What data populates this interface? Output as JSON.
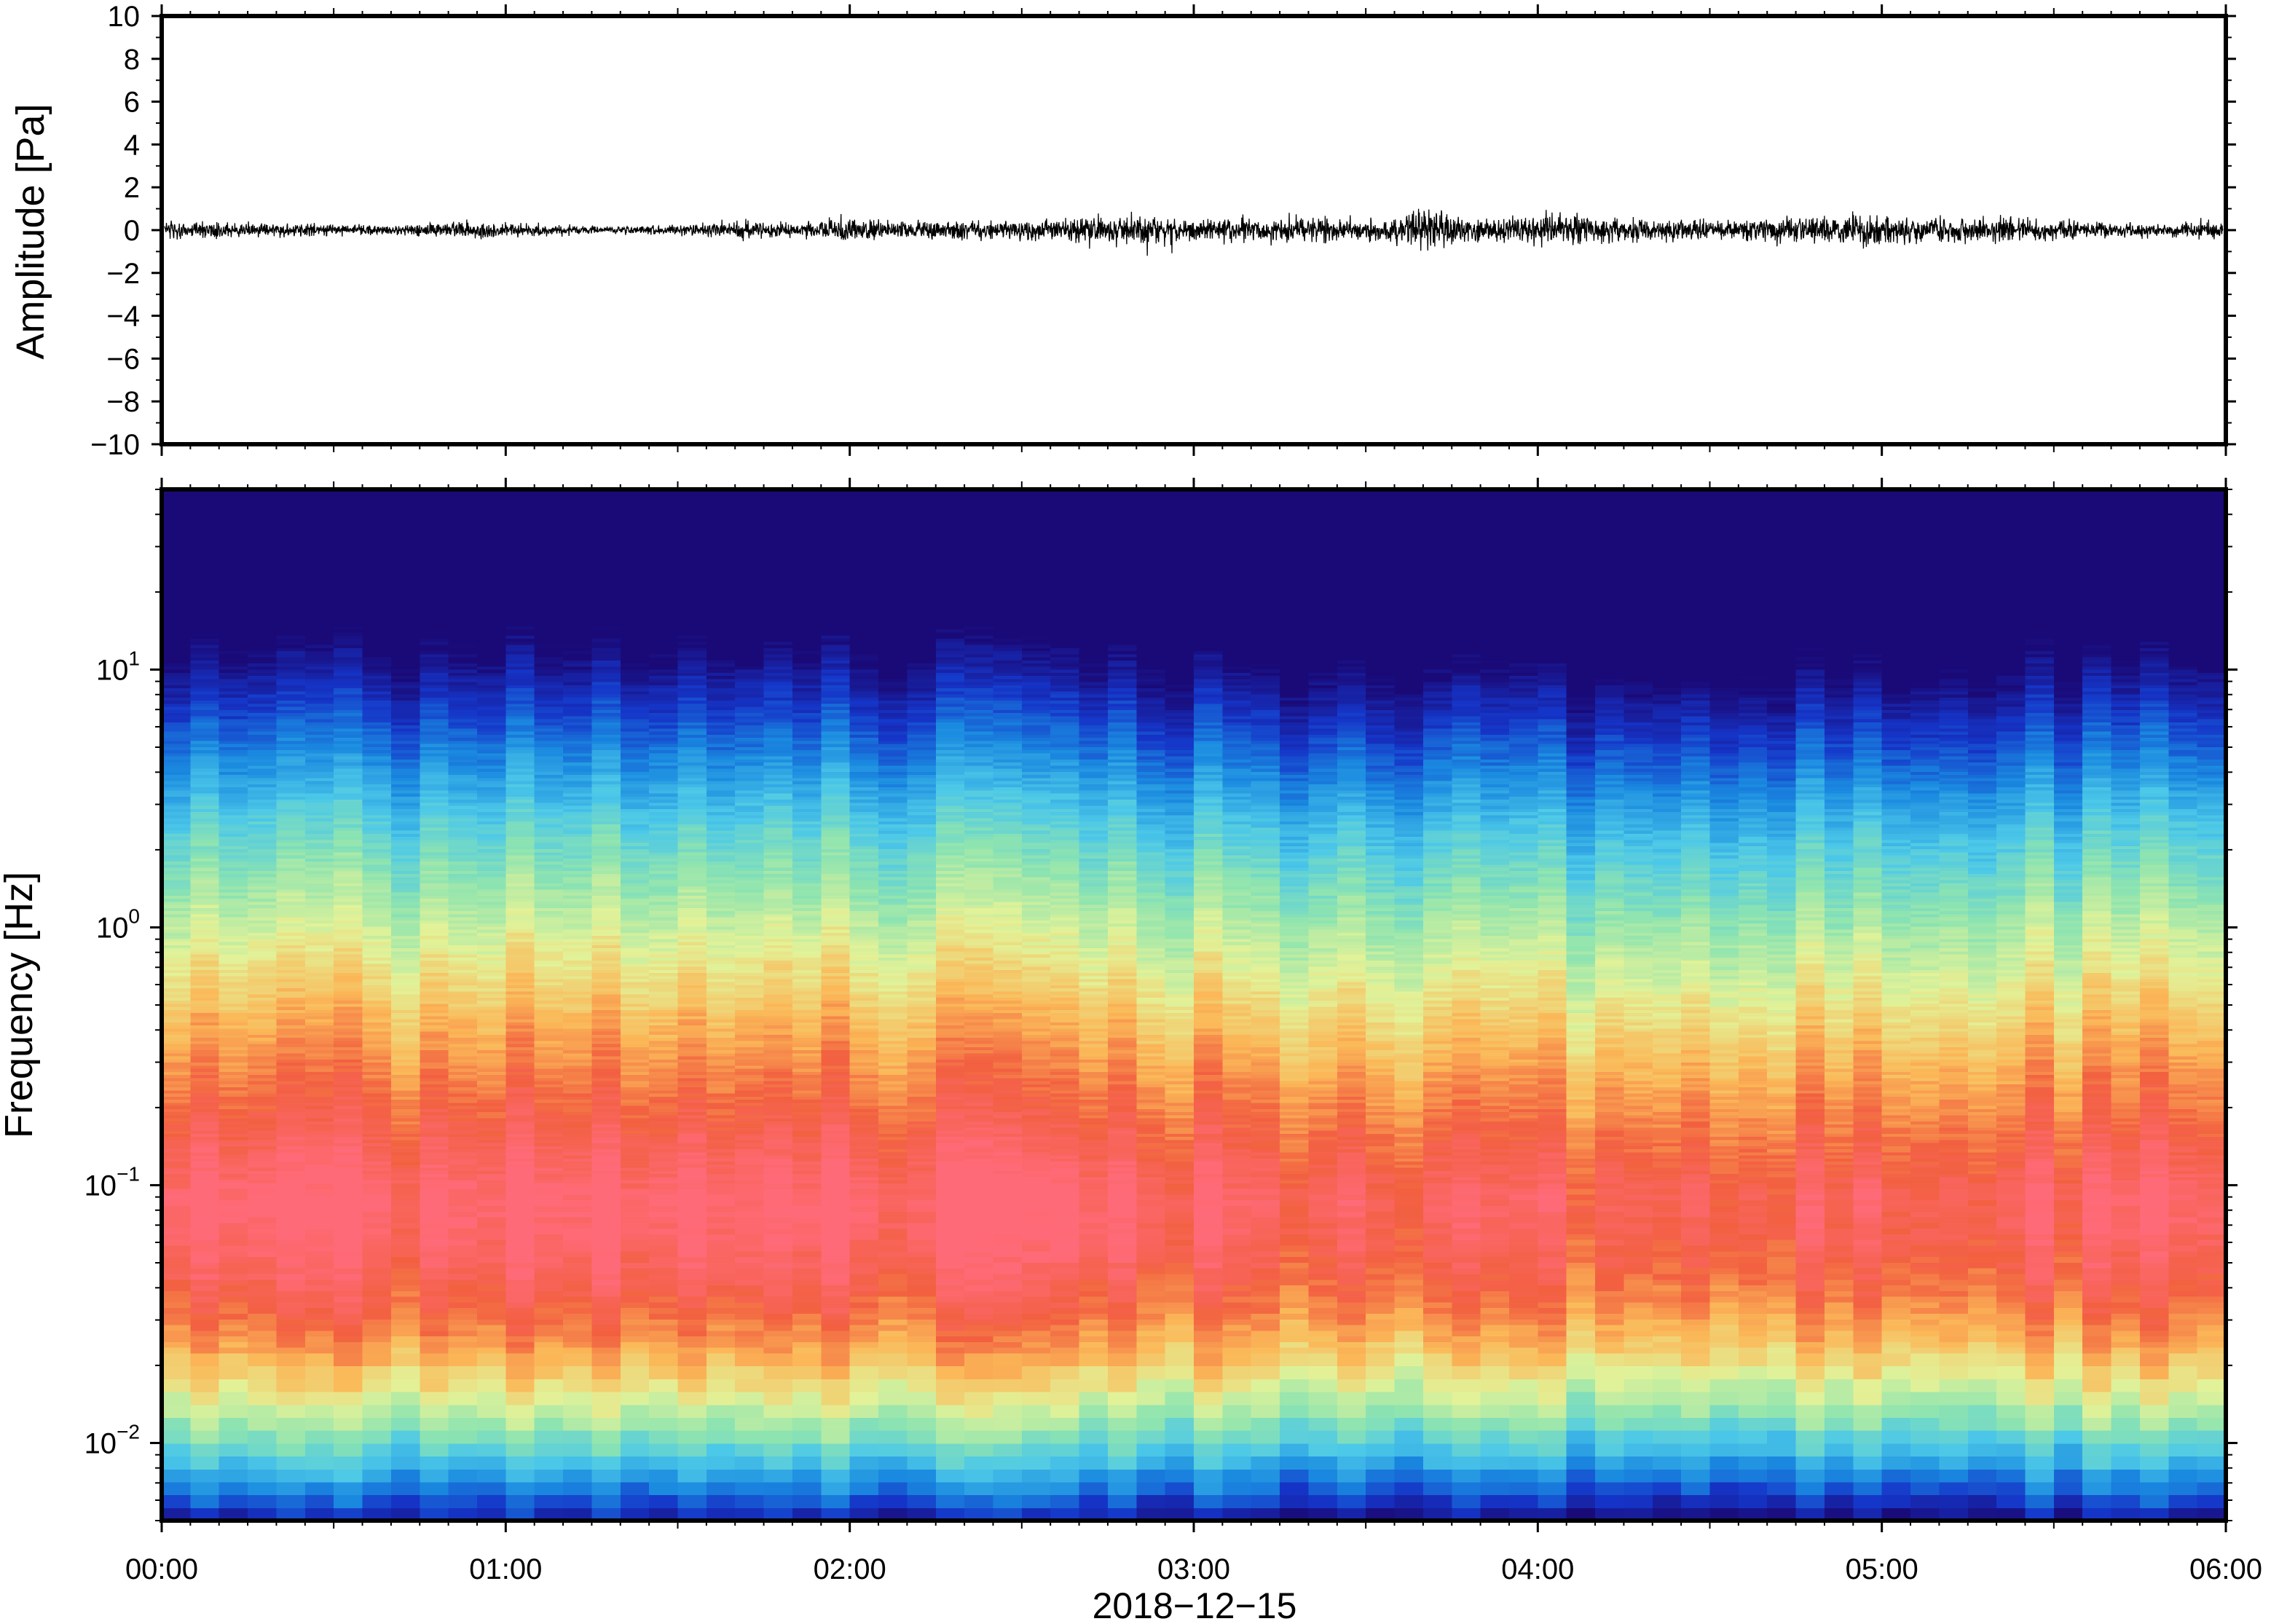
{
  "chart_data": [
    {
      "type": "line",
      "panel": "waveform",
      "title": "",
      "xlabel": "",
      "ylabel": "Amplitude [Pa]",
      "ylim": [
        -10,
        10
      ],
      "yticks": [
        "10",
        "8",
        "6",
        "4",
        "2",
        "0",
        "−2",
        "−4",
        "−6",
        "−8",
        "−10"
      ],
      "ytick_values": [
        10,
        8,
        6,
        4,
        2,
        0,
        -2,
        -4,
        -6,
        -8,
        -10
      ],
      "xlim_hours": [
        0,
        6
      ],
      "grid": false,
      "trace_color": "#000000",
      "series": [
        {
          "values_envelope_pa": [
            0.9,
            0.8,
            0.7,
            0.6,
            0.5,
            0.9,
            0.7,
            0.5,
            0.4,
            0.6,
            0.9,
            0.8,
            1.2,
            0.9,
            1.0,
            1.1,
            1.3,
            1.5,
            1.2,
            1.3,
            1.4,
            1.1,
            1.9,
            1.2,
            1.5,
            1.3,
            1.2,
            1.1,
            1.3,
            1.4,
            1.5,
            1.3,
            1.4,
            1.0,
            0.8,
            0.7,
            1.2
          ]
        }
      ]
    },
    {
      "type": "heatmap",
      "panel": "spectrogram",
      "title": "",
      "xlabel": "2018−12−15",
      "ylabel": "Frequency [Hz]",
      "yscale": "log",
      "ylim_hz": [
        0.005,
        50
      ],
      "yticks": [
        {
          "base": "10",
          "exp": "1",
          "value": 10
        },
        {
          "base": "10",
          "exp": "0",
          "value": 1
        },
        {
          "base": "10",
          "exp": "−1",
          "value": 0.1
        },
        {
          "base": "10",
          "exp": "−2",
          "value": 0.01
        }
      ],
      "xticks": [
        "00:00",
        "01:00",
        "02:00",
        "03:00",
        "04:00",
        "05:00",
        "06:00"
      ],
      "xtick_hours": [
        0,
        1,
        2,
        3,
        4,
        5,
        6
      ],
      "colormap": "rainbow (blue = low power, red = high power)",
      "colormap_stops": [
        "#1a0a78",
        "#1535c8",
        "#1a8ae0",
        "#4cc8e8",
        "#8ee4b0",
        "#e2f298",
        "#fbb858",
        "#f26040",
        "#ff6a78"
      ],
      "time_columns": 72,
      "power_peak_hz": 0.09
    }
  ]
}
